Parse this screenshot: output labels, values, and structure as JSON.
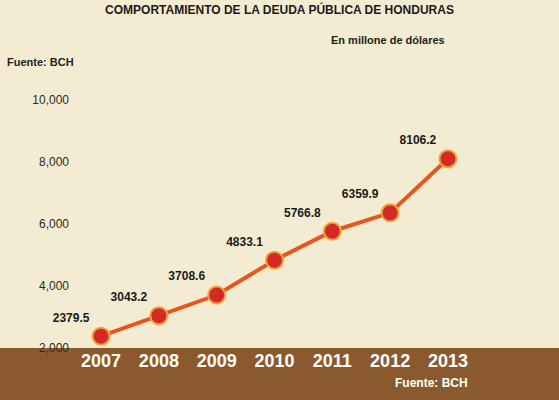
{
  "chart_data": {
    "type": "line",
    "title": "COMPORTAMIENTO DE LA DEUDA PÚBLICA DE HONDURAS",
    "annotations": [
      "Fuente: BCH",
      "En millone de dólares",
      "Fuente: BCH"
    ],
    "categories": [
      "2007",
      "2008",
      "2009",
      "2010",
      "2011",
      "2012",
      "2013"
    ],
    "values": [
      2379.5,
      3043.2,
      3708.6,
      4833.1,
      5766.8,
      6359.9,
      8106.2
    ],
    "color": "#e8561e",
    "marker": "circle",
    "line_style": "solid",
    "data_labels": true,
    "ylim": [
      2000,
      10000
    ],
    "yticks": [
      {
        "value": 2000,
        "label": "2,000"
      },
      {
        "value": 4000,
        "label": "4,000"
      },
      {
        "value": 6000,
        "label": "6,000"
      },
      {
        "value": 8000,
        "label": "8,000"
      },
      {
        "value": 10000,
        "label": "10,000"
      }
    ],
    "grid": false
  }
}
